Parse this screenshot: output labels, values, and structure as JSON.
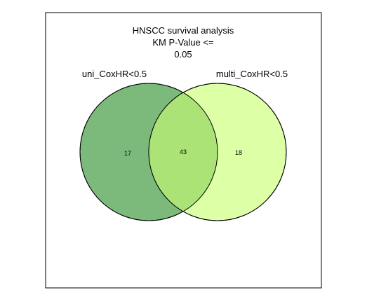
{
  "title": {
    "line1": "HNSCC survival analysis",
    "line2": "KM P-Value <=",
    "line3": "0.05"
  },
  "sets": [
    {
      "label": "uni_CoxHR<0.5",
      "color": "#7cba7c"
    },
    {
      "label": "multi_CoxHR<0.5",
      "color": "#ddffa6"
    }
  ],
  "counts": {
    "left_only": "17",
    "both": "43",
    "right_only": "18"
  },
  "colors": {
    "left": "#7cba7c",
    "right": "#ddffa6",
    "overlap": "#ace377",
    "stroke": "#000000"
  }
}
